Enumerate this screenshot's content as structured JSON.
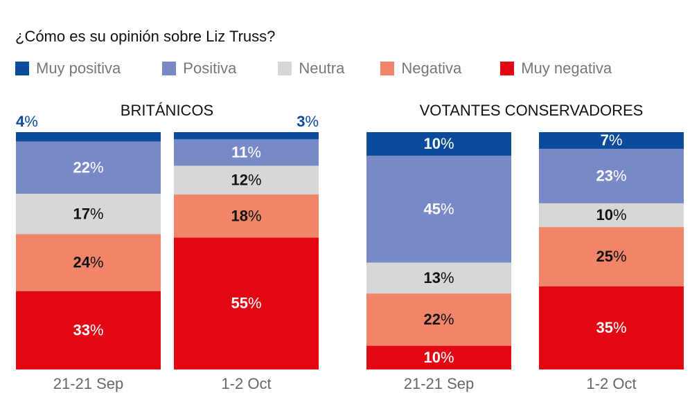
{
  "chart_data": {
    "type": "bar",
    "stacked": true,
    "title": "¿Cómo es su opinión sobre Liz Truss?",
    "legend_placement": "top",
    "series_names": [
      "Muy positiva",
      "Positiva",
      "Neutra",
      "Negativa",
      "Muy negativa"
    ],
    "colors": [
      "#0b4b9c",
      "#7889c7",
      "#d7d7d7",
      "#f0856a",
      "#e30613"
    ],
    "label_colors": [
      "#ffffff",
      "#ffffff",
      "#111111",
      "#111111",
      "#ffffff"
    ],
    "panels": [
      {
        "title": "BRITÁNICOS",
        "categories": [
          "21-21 Sep",
          "1-2 Oct"
        ],
        "values": [
          [
            4,
            22,
            17,
            24,
            33
          ],
          [
            3,
            11,
            12,
            18,
            55
          ]
        ]
      },
      {
        "title": "VOTANTES CONSERVADORES",
        "categories": [
          "21-21 Sep",
          "1-2 Oct"
        ],
        "values": [
          [
            10,
            45,
            13,
            22,
            10
          ],
          [
            7,
            23,
            10,
            25,
            35
          ]
        ]
      }
    ],
    "unit": "%"
  }
}
